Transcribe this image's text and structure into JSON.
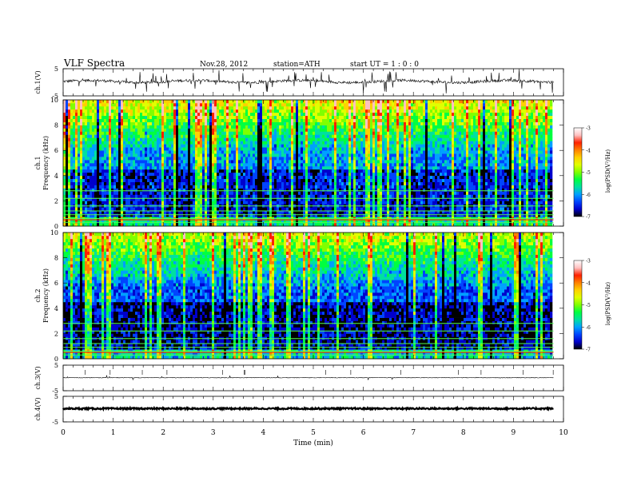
{
  "header": {
    "title": "VLF  Spectra",
    "date": "Nov.28, 2012",
    "station": "station=ATH",
    "start": "start  UT =   1 : 0  : 0"
  },
  "chart_data": [
    {
      "type": "line",
      "panel": "ch1-waveform",
      "ylabel": "ch.1(V)",
      "yticks": [
        "5",
        "-5"
      ],
      "ylim": [
        -5,
        5
      ],
      "xlim": [
        0,
        10
      ]
    },
    {
      "type": "heatmap",
      "panel": "ch1-spectrogram",
      "ylabel_channel": "ch.1",
      "ylabel": "Frequency  (kHz)",
      "yticks": [
        "0",
        "2",
        "4",
        "6",
        "8",
        "10"
      ],
      "ylim": [
        0,
        10
      ],
      "colorbar": {
        "label": "log(PSD(V²/Hz)",
        "ticks": [
          "-3",
          "-4",
          "-5",
          "-6",
          "-7"
        ],
        "range": [
          -7,
          -3
        ],
        "colors": [
          "#000000",
          "#0000cc",
          "#0044ff",
          "#00a0ff",
          "#00e0a0",
          "#00ff40",
          "#80ff00",
          "#e0ff00",
          "#ffd000",
          "#ff8000",
          "#ff2000",
          "#ffc0c0",
          "#ffffff"
        ]
      }
    },
    {
      "type": "heatmap",
      "panel": "ch2-spectrogram",
      "ylabel_channel": "ch.2",
      "ylabel": "Frequency  (kHz)",
      "yticks": [
        "0",
        "2",
        "4",
        "6",
        "8",
        "10"
      ],
      "ylim": [
        0,
        10
      ],
      "colorbar": {
        "label": "log(PSD(V²/Hz)",
        "ticks": [
          "-3",
          "-4",
          "-5",
          "-6",
          "-7"
        ],
        "range": [
          -7,
          -3
        ]
      }
    },
    {
      "type": "line",
      "panel": "ch3-waveform",
      "ylabel": "ch.3(V)",
      "yticks": [
        "5",
        "-5"
      ],
      "ylim": [
        -5,
        5
      ]
    },
    {
      "type": "line",
      "panel": "ch4-waveform",
      "ylabel": "ch.4(V)",
      "yticks": [
        "5",
        "-5"
      ],
      "ylim": [
        -5,
        5
      ]
    }
  ],
  "x_axis": {
    "label": "Time  (min)",
    "ticks": [
      "0",
      "1",
      "2",
      "3",
      "4",
      "5",
      "6",
      "7",
      "8",
      "9",
      "10"
    ],
    "xlim": [
      0,
      10
    ],
    "data_end": 9.8
  }
}
